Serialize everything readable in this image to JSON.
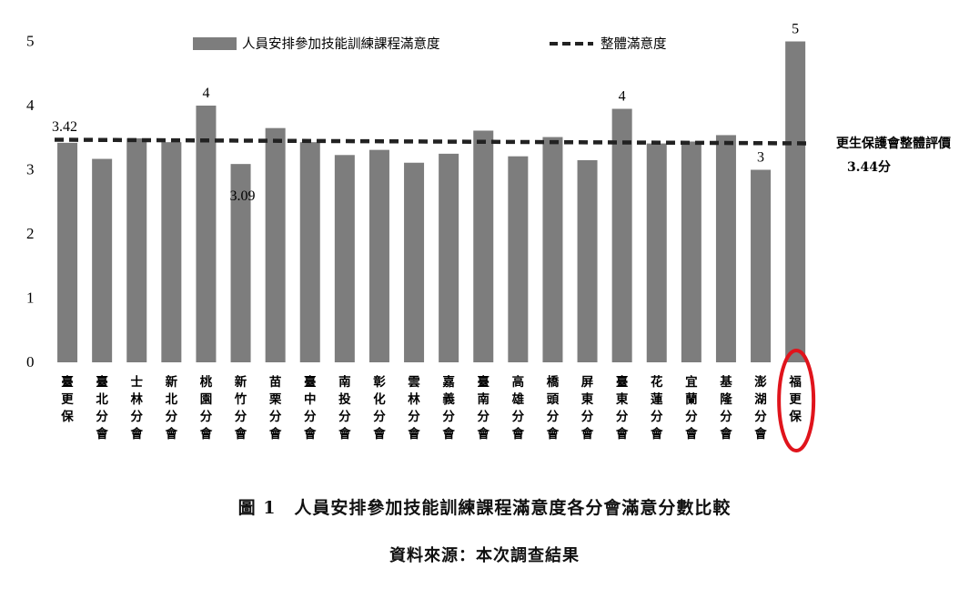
{
  "chart_data": {
    "type": "bar",
    "categories": [
      "臺更保",
      "臺北分會",
      "士林分會",
      "新北分會",
      "桃園分會",
      "新竹分會",
      "苗栗分會",
      "臺中分會",
      "南投分會",
      "彰化分會",
      "雲林分會",
      "嘉義分會",
      "臺南分會",
      "高雄分會",
      "橋頭分會",
      "屏東分會",
      "臺東分會",
      "花蓮分會",
      "宜蘭分會",
      "基隆分會",
      "澎湖分會",
      "福更保"
    ],
    "series": [
      {
        "name": "人員安排參加技能訓練課程滿意度",
        "values": [
          3.42,
          3.17,
          3.49,
          3.43,
          4.0,
          3.09,
          3.65,
          3.43,
          3.23,
          3.31,
          3.11,
          3.25,
          3.61,
          3.21,
          3.51,
          3.15,
          3.95,
          3.41,
          3.44,
          3.54,
          3.0,
          5.0
        ]
      },
      {
        "name": "整體滿意度",
        "values": [
          3.44,
          3.44,
          3.44,
          3.44,
          3.44,
          3.44,
          3.44,
          3.44,
          3.44,
          3.44,
          3.44,
          3.44,
          3.44,
          3.44,
          3.44,
          3.44,
          3.44,
          3.44,
          3.44,
          3.44,
          3.44,
          3.44
        ]
      }
    ],
    "data_labels": [
      {
        "index": 0,
        "text": "3.42"
      },
      {
        "index": 4,
        "text": "4"
      },
      {
        "index": 5,
        "text": "3.09"
      },
      {
        "index": 16,
        "text": "4"
      },
      {
        "index": 20,
        "text": "3"
      },
      {
        "index": 21,
        "text": "5"
      }
    ],
    "y_ticks": [
      "0",
      "1",
      "2",
      "3",
      "4",
      "5"
    ],
    "ylim": [
      0,
      5
    ],
    "overall_annotation": {
      "line1": "更生保護會整體評價",
      "line2": "3.44分"
    },
    "highlight_index": 21,
    "highlight_color": "#e0141c",
    "bar_color": "#7d7d7d",
    "avg_line_color": "#222222",
    "grid": false,
    "legend_position": "top"
  },
  "caption": "圖 1　人員安排參加技能訓練課程滿意度各分會滿意分數比較",
  "source": "資料來源：本次調查結果"
}
